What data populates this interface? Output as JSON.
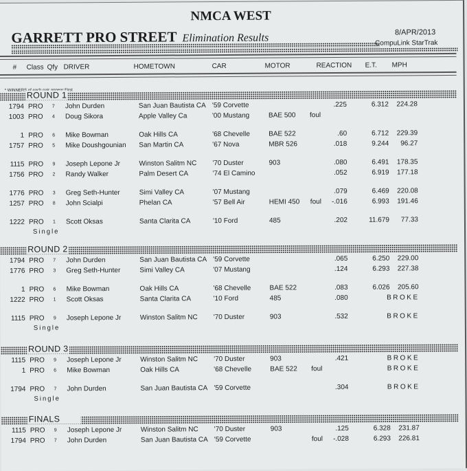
{
  "header": {
    "org": "NMCA WEST",
    "event": "GARRETT PRO STREET",
    "subtitle": "Elimination Results",
    "date": "8/APR/2013",
    "system": "CompuLink  StarTrak"
  },
  "columns": {
    "num": "#",
    "cls": "Class",
    "qfy": "Qfy",
    "driver": "DRIVER",
    "hometown": "HOMETOWN",
    "car": "CAR",
    "motor": "MOTOR",
    "reaction": "REACTION",
    "et": "E.T.",
    "mph": "MPH"
  },
  "note": "* WINNERS of each pair appear First",
  "rounds": [
    {
      "name": "ROUND 1",
      "groups": [
        {
          "rows": [
            {
              "num": "1794",
              "cls": "PRO",
              "qfy": "7",
              "driver": "John Durden",
              "hometown": "San Juan Bautista CA",
              "car": "'59 Corvette",
              "motor": "",
              "foul": "",
              "reaction": ".225",
              "et": "6.312",
              "mph": "224.28"
            },
            {
              "num": "1003",
              "cls": "PRO",
              "qfy": "4",
              "driver": "Doug Sikora",
              "hometown": "Apple Valley Ca",
              "car": "'00 Mustang",
              "motor": "BAE 500",
              "foul": "foul",
              "reaction": "",
              "et": "",
              "mph": ""
            }
          ]
        },
        {
          "rows": [
            {
              "num": "1",
              "cls": "PRO",
              "qfy": "6",
              "driver": "Mike Bowman",
              "hometown": "Oak Hills CA",
              "car": "'68 Chevelle",
              "motor": "BAE 522",
              "foul": "",
              "reaction": ".60",
              "et": "6.712",
              "mph": "229.39"
            },
            {
              "num": "1757",
              "cls": "PRO",
              "qfy": "5",
              "driver": "Mike Doushgounian",
              "hometown": "San Martin CA",
              "car": "'67 Nova",
              "motor": "MBR 526",
              "foul": "",
              "reaction": ".018",
              "et": "9.244",
              "mph": "96.27"
            }
          ]
        },
        {
          "rows": [
            {
              "num": "1115",
              "cls": "PRO",
              "qfy": "9",
              "driver": "Joseph Lepone Jr",
              "hometown": "Winston Salitm NC",
              "car": "'70 Duster",
              "motor": "903",
              "foul": "",
              "reaction": ".080",
              "et": "6.491",
              "mph": "178.35"
            },
            {
              "num": "1756",
              "cls": "PRO",
              "qfy": "2",
              "driver": "Randy Walker",
              "hometown": "Palm Desert CA",
              "car": "'74 El Camino",
              "motor": "",
              "foul": "",
              "reaction": ".052",
              "et": "6.919",
              "mph": "177.18"
            }
          ]
        },
        {
          "rows": [
            {
              "num": "1776",
              "cls": "PRO",
              "qfy": "3",
              "driver": "Greg Seth-Hunter",
              "hometown": "Simi Valley CA",
              "car": "'07 Mustang",
              "motor": "",
              "foul": "",
              "reaction": ".079",
              "et": "6.469",
              "mph": "220.08"
            },
            {
              "num": "1257",
              "cls": "PRO",
              "qfy": "8",
              "driver": "John Scialpi",
              "hometown": "Phelan CA",
              "car": "'57 Bell Air",
              "motor": "HEMI 450",
              "foul": "foul",
              "reaction": "-.016",
              "et": "6.993",
              "mph": "191.46"
            }
          ]
        },
        {
          "single": "Single",
          "rows": [
            {
              "num": "1222",
              "cls": "PRO",
              "qfy": "1",
              "driver": "Scott Oksas",
              "hometown": "Santa Clarita CA",
              "car": "'10 Ford",
              "motor": "485",
              "foul": "",
              "reaction": ".202",
              "et": "11.679",
              "mph": "77.33"
            }
          ]
        }
      ]
    },
    {
      "name": "ROUND 2",
      "groups": [
        {
          "rows": [
            {
              "num": "1794",
              "cls": "PRO",
              "qfy": "7",
              "driver": "John Durden",
              "hometown": "San Juan Bautista CA",
              "car": "'59 Corvette",
              "motor": "",
              "foul": "",
              "reaction": ".065",
              "et": "6.250",
              "mph": "229.00"
            },
            {
              "num": "1776",
              "cls": "PRO",
              "qfy": "3",
              "driver": "Greg Seth-Hunter",
              "hometown": "Simi Valley CA",
              "car": "'07 Mustang",
              "motor": "",
              "foul": "",
              "reaction": ".124",
              "et": "6.293",
              "mph": "227.38"
            }
          ]
        },
        {
          "rows": [
            {
              "num": "1",
              "cls": "PRO",
              "qfy": "6",
              "driver": "Mike Bowman",
              "hometown": "Oak Hills CA",
              "car": "'68 Chevelle",
              "motor": "BAE 522",
              "foul": "",
              "reaction": ".083",
              "et": "6.026",
              "mph": "205.60"
            },
            {
              "num": "1222",
              "cls": "PRO",
              "qfy": "1",
              "driver": "Scott Oksas",
              "hometown": "Santa Clarita CA",
              "car": "'10 Ford",
              "motor": "485",
              "foul": "",
              "reaction": ".080",
              "broke": "BROKE"
            }
          ]
        },
        {
          "single": "Single",
          "rows": [
            {
              "num": "1115",
              "cls": "PRO",
              "qfy": "9",
              "driver": "Joseph Lepone Jr",
              "hometown": "Winston Salitm NC",
              "car": "'70 Duster",
              "motor": "903",
              "foul": "",
              "reaction": ".532",
              "broke": "BROKE"
            }
          ]
        }
      ]
    },
    {
      "name": "ROUND 3",
      "groups": [
        {
          "rows": [
            {
              "num": "1115",
              "cls": "PRO",
              "qfy": "9",
              "driver": "Joseph Lepone Jr",
              "hometown": "Winston Salitm NC",
              "car": "'70 Duster",
              "motor": "903",
              "foul": "",
              "reaction": ".421",
              "broke": "BROKE"
            },
            {
              "num": "1",
              "cls": "PRO",
              "qfy": "6",
              "driver": "Mike Bowman",
              "hometown": "Oak Hills CA",
              "car": "'68 Chevelle",
              "motor": "BAE 522",
              "foul": "foul",
              "reaction": "",
              "broke": "BROKE"
            }
          ]
        },
        {
          "single": "Single",
          "rows": [
            {
              "num": "1794",
              "cls": "PRO",
              "qfy": "7",
              "driver": "John Durden",
              "hometown": "San Juan Bautista CA",
              "car": "'59 Corvette",
              "motor": "",
              "foul": "",
              "reaction": ".304",
              "broke": "BROKE"
            }
          ]
        }
      ]
    },
    {
      "name": "FINALS",
      "groups": [
        {
          "rows": [
            {
              "num": "1115",
              "cls": "PRO",
              "qfy": "9",
              "driver": "Joseph Lepone Jr",
              "hometown": "Winston Salitm NC",
              "car": "'70 Duster",
              "motor": "903",
              "foul": "",
              "reaction": ".125",
              "et": "6.328",
              "mph": "231.87"
            },
            {
              "num": "1794",
              "cls": "PRO",
              "qfy": "7",
              "driver": "John Durden",
              "hometown": "San Juan Bautista CA",
              "car": "'59 Corvette",
              "motor": "",
              "foul": "foul",
              "reaction": "-.028",
              "et": "6.293",
              "mph": "226.81"
            }
          ]
        }
      ]
    }
  ]
}
